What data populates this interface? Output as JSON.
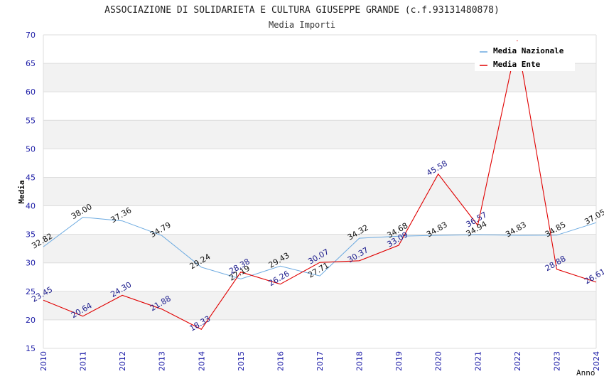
{
  "chart_data": {
    "type": "line",
    "title": "ASSOCIAZIONE DI SOLIDARIETA E CULTURA GIUSEPPE GRANDE (c.f.93131480878)",
    "subtitle": "Media Importi",
    "xlabel": "Anno",
    "ylabel": "Media",
    "x": [
      "2010",
      "2011",
      "2012",
      "2013",
      "2014",
      "2015",
      "2016",
      "2017",
      "2018",
      "2019",
      "2020",
      "2021",
      "2022",
      "2023",
      "2024"
    ],
    "ylim": [
      15,
      70
    ],
    "yticks": [
      "15",
      "20",
      "25",
      "30",
      "35",
      "40",
      "45",
      "50",
      "55",
      "60",
      "65",
      "70"
    ],
    "grid": true,
    "legend_position": "top-right",
    "series": [
      {
        "name": "Media Nazionale",
        "color": "#6aa9e0",
        "label_color": "#111111",
        "values": [
          32.82,
          38.0,
          37.36,
          34.79,
          29.24,
          27.19,
          29.43,
          27.71,
          34.32,
          34.68,
          34.83,
          34.94,
          34.83,
          34.85,
          37.05
        ],
        "labels": [
          "32.82",
          "38.00",
          "37.36",
          "34.79",
          "29.24",
          "27.19",
          "29.43",
          "27.71",
          "34.32",
          "34.68",
          "34.83",
          "34.94",
          "34.83",
          "34.85",
          "37.05"
        ]
      },
      {
        "name": "Media Ente",
        "color": "#e00000",
        "label_color": "#1a1a8c",
        "values": [
          23.45,
          20.64,
          24.3,
          21.88,
          18.33,
          28.38,
          26.26,
          30.07,
          30.37,
          33.09,
          45.58,
          36.57,
          69.0,
          28.88,
          26.61
        ],
        "labels": [
          "23.45",
          "20.64",
          "24.30",
          "21.88",
          "18.33",
          "28.38",
          "26.26",
          "30.07",
          "30.37",
          "33.09",
          "45.58",
          "36.57",
          "",
          "28.88",
          "26.61"
        ]
      }
    ]
  }
}
